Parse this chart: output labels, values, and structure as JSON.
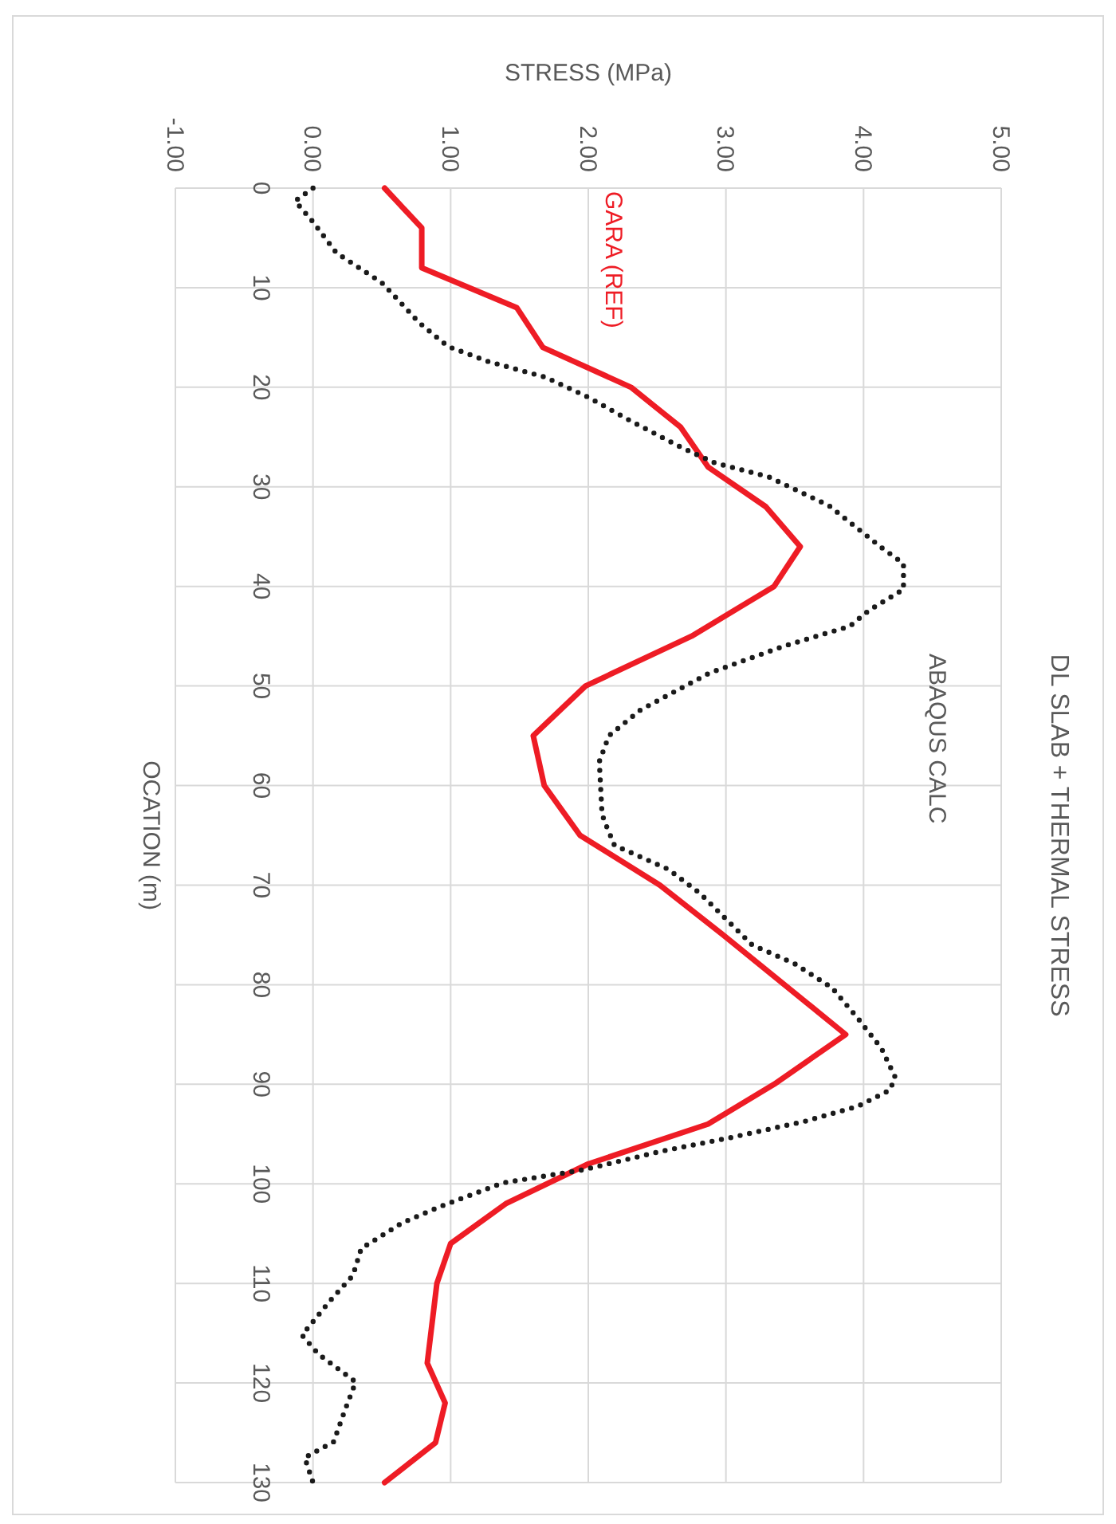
{
  "chart_data": {
    "type": "line",
    "title": "DL SLAB + THERMAL STRESS",
    "xlabel": "STRESS (MPa)",
    "ylabel": "OCATION (m)",
    "ylim": [
      130,
      0
    ],
    "yticks": [
      0,
      10,
      20,
      30,
      40,
      50,
      60,
      70,
      80,
      90,
      100,
      110,
      120,
      130
    ],
    "xlim": [
      -1,
      5
    ],
    "xticks": [
      {
        "value": -1,
        "label": "-1.00"
      },
      {
        "value": 0,
        "label": "0.00"
      },
      {
        "value": 1,
        "label": "1.00"
      },
      {
        "value": 2,
        "label": "2.00"
      },
      {
        "value": 3,
        "label": "3.00"
      },
      {
        "value": 4,
        "label": "4.00"
      },
      {
        "value": 5,
        "label": "5.00"
      }
    ],
    "grid": true,
    "marker": "none",
    "series": [
      {
        "name": "GARA (REF)",
        "color": "#ee1c25",
        "line_style": "solid",
        "values": [
          0,
          4,
          8,
          12,
          16,
          20,
          24,
          28,
          32,
          36,
          40,
          45,
          50,
          55,
          60,
          65,
          70,
          75,
          85,
          90,
          94,
          98,
          102,
          106,
          110,
          118,
          122,
          126,
          130
        ],
        "x": [
          0.52,
          0.79,
          0.79,
          1.48,
          1.67,
          2.31,
          2.67,
          2.87,
          3.29,
          3.54,
          3.35,
          2.75,
          1.98,
          1.6,
          1.68,
          1.94,
          2.52,
          2.98,
          3.87,
          3.35,
          2.87,
          2.0,
          1.4,
          1.0,
          0.9,
          0.83,
          0.96,
          0.89,
          0.52
        ]
      },
      {
        "name": "ABAQUS CALC",
        "color": "#1a1a1a",
        "line_style": "dotted",
        "values": [
          0,
          1.3,
          3.4,
          6.5,
          9.5,
          11.4,
          13.5,
          15.9,
          17.4,
          19,
          21,
          23.4,
          26,
          27.6,
          29,
          31.9,
          36.1,
          37.7,
          40.3,
          42.4,
          44,
          46,
          48.7,
          52.4,
          55,
          57.6,
          62.9,
          64,
          66,
          68.4,
          70.8,
          73.4,
          76,
          77.9,
          80.3,
          83.4,
          86.4,
          89.3,
          90.6,
          92.2,
          93.7,
          95.4,
          96.7,
          98.6,
          99.9,
          102.3,
          103.9,
          106.5,
          109.2,
          111.8,
          115.2,
          117.1,
          119.9,
          122.8,
          125.9,
          127.5,
          130
        ],
        "x": [
          0,
          -0.13,
          0,
          0.17,
          0.5,
          0.63,
          0.77,
          0.98,
          1.27,
          1.69,
          2.0,
          2.31,
          2.67,
          2.92,
          3.31,
          3.75,
          4.13,
          4.29,
          4.29,
          4.04,
          3.9,
          3.42,
          2.88,
          2.38,
          2.15,
          2.08,
          2.1,
          2.13,
          2.19,
          2.58,
          2.81,
          3.0,
          3.19,
          3.5,
          3.77,
          3.96,
          4.13,
          4.23,
          4.19,
          3.96,
          3.58,
          3.02,
          2.54,
          1.96,
          1.38,
          0.92,
          0.65,
          0.35,
          0.29,
          0.12,
          -0.08,
          0.04,
          0.31,
          0.23,
          0.15,
          -0.06,
          0
        ]
      }
    ]
  }
}
